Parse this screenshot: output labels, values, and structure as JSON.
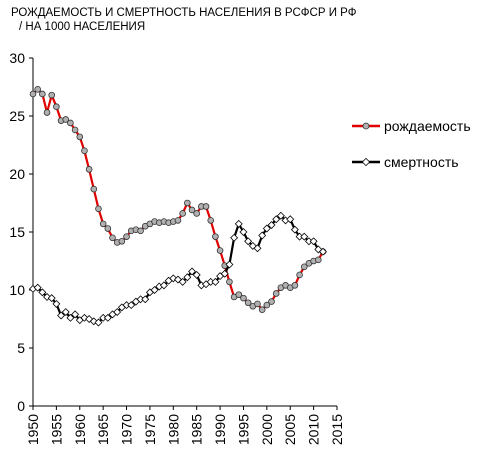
{
  "chart_data": {
    "type": "line",
    "title_line1": "РОЖДАЕМОСТЬ И СМЕРТНОСТЬ НАСЕЛЕНИЯ В РСФСР И РФ",
    "title_line2": "/ НА 1000 НАСЕЛЕНИЯ",
    "xlim": [
      1950,
      2015
    ],
    "ylim": [
      0,
      30
    ],
    "xticks": [
      "1950",
      "1955",
      "1960",
      "1965",
      "1970",
      "1975",
      "1980",
      "1985",
      "1990",
      "1995",
      "2000",
      "2005",
      "2010",
      "2015"
    ],
    "yticks": [
      "0",
      "5",
      "10",
      "15",
      "20",
      "25",
      "30"
    ],
    "grid": false,
    "legend_position": "right",
    "series": [
      {
        "name": "рождаемость",
        "color": "#e00000",
        "marker": "circle",
        "marker_fill": "#b0b0b0",
        "x": [
          1950,
          1951,
          1952,
          1953,
          1954,
          1955,
          1956,
          1957,
          1958,
          1959,
          1960,
          1961,
          1962,
          1963,
          1964,
          1965,
          1966,
          1967,
          1968,
          1969,
          1970,
          1971,
          1972,
          1973,
          1974,
          1975,
          1976,
          1977,
          1978,
          1979,
          1980,
          1981,
          1982,
          1983,
          1984,
          1985,
          1986,
          1987,
          1988,
          1989,
          1990,
          1991,
          1992,
          1993,
          1994,
          1995,
          1996,
          1997,
          1998,
          1999,
          2000,
          2001,
          2002,
          2003,
          2004,
          2005,
          2006,
          2007,
          2008,
          2009,
          2010,
          2011,
          2012
        ],
        "y": [
          26.9,
          27.3,
          26.9,
          25.3,
          26.8,
          25.8,
          24.6,
          24.7,
          24.4,
          23.8,
          23.2,
          22.0,
          20.4,
          18.7,
          17.0,
          15.7,
          15.3,
          14.5,
          14.1,
          14.2,
          14.6,
          15.1,
          15.2,
          15.1,
          15.5,
          15.7,
          15.9,
          15.8,
          15.9,
          15.8,
          15.9,
          16.0,
          16.6,
          17.5,
          16.9,
          16.6,
          17.2,
          17.2,
          16.0,
          14.6,
          13.4,
          12.1,
          10.7,
          9.4,
          9.6,
          9.3,
          8.9,
          8.6,
          8.8,
          8.3,
          8.7,
          9.0,
          9.7,
          10.2,
          10.4,
          10.2,
          10.4,
          11.3,
          12.0,
          12.3,
          12.5,
          12.6,
          13.3
        ]
      },
      {
        "name": "смертность",
        "color": "#000000",
        "marker": "diamond",
        "marker_fill": "#ffffff",
        "x": [
          1950,
          1951,
          1952,
          1953,
          1954,
          1955,
          1956,
          1957,
          1958,
          1959,
          1960,
          1961,
          1962,
          1963,
          1964,
          1965,
          1966,
          1967,
          1968,
          1969,
          1970,
          1971,
          1972,
          1973,
          1974,
          1975,
          1976,
          1977,
          1978,
          1979,
          1980,
          1981,
          1982,
          1983,
          1984,
          1985,
          1986,
          1987,
          1988,
          1989,
          1990,
          1991,
          1992,
          1993,
          1994,
          1995,
          1996,
          1997,
          1998,
          1999,
          2000,
          2001,
          2002,
          2003,
          2004,
          2005,
          2006,
          2007,
          2008,
          2009,
          2010,
          2011,
          2012
        ],
        "y": [
          10.1,
          10.2,
          9.8,
          9.4,
          9.3,
          8.8,
          7.8,
          8.1,
          7.6,
          7.9,
          7.4,
          7.6,
          7.5,
          7.3,
          7.2,
          7.6,
          7.6,
          7.9,
          8.1,
          8.5,
          8.7,
          8.7,
          9.0,
          9.2,
          9.2,
          9.8,
          10.0,
          10.3,
          10.4,
          10.8,
          11.0,
          10.9,
          10.7,
          11.1,
          11.6,
          11.3,
          10.4,
          10.5,
          10.7,
          10.7,
          11.2,
          11.4,
          12.2,
          14.5,
          15.7,
          15.0,
          14.2,
          13.8,
          13.6,
          14.7,
          15.3,
          15.6,
          16.1,
          16.4,
          16.0,
          16.1,
          15.2,
          14.6,
          14.6,
          14.2,
          14.2,
          13.5,
          13.3
        ]
      }
    ]
  }
}
